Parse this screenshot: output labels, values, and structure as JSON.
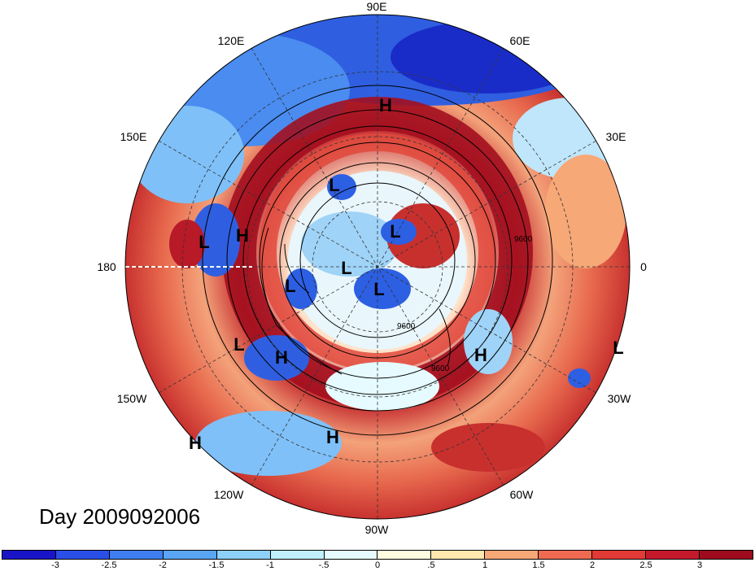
{
  "title": "Day 2009092006",
  "map": {
    "projection": "polar-stereographic-north",
    "lon_labels": [
      {
        "text": "90E"
      },
      {
        "text": "60E"
      },
      {
        "text": "30E"
      },
      {
        "text": "0"
      },
      {
        "text": "30W"
      },
      {
        "text": "60W"
      },
      {
        "text": "90W"
      },
      {
        "text": "120W"
      },
      {
        "text": "150W"
      },
      {
        "text": "180"
      },
      {
        "text": "150E"
      },
      {
        "text": "120E"
      }
    ],
    "pressure_centers": [
      {
        "type": "H"
      },
      {
        "type": "L"
      },
      {
        "type": "L"
      },
      {
        "type": "H"
      },
      {
        "type": "L"
      },
      {
        "type": "L"
      },
      {
        "type": "L"
      },
      {
        "type": "L"
      },
      {
        "type": "L"
      },
      {
        "type": "H"
      },
      {
        "type": "H"
      },
      {
        "type": "L"
      },
      {
        "type": "H"
      },
      {
        "type": "H"
      }
    ],
    "contour_labels": [
      "9600",
      "9600",
      "9600"
    ]
  },
  "colorbar": {
    "colors": [
      "#1a14c8",
      "#2a4fe6",
      "#3f7ef0",
      "#5aa6f5",
      "#8dd0fa",
      "#bff0fb",
      "#e6fbff",
      "#fffde0",
      "#ffe8b0",
      "#f7a877",
      "#f06a52",
      "#e23a36",
      "#c41a2c",
      "#9e0a1e"
    ],
    "ticks": [
      "-3",
      "-2.5",
      "-2",
      "-1.5",
      "-1",
      "-.5",
      "0",
      ".5",
      "1",
      "1.5",
      "2",
      "2.5",
      "3"
    ]
  }
}
